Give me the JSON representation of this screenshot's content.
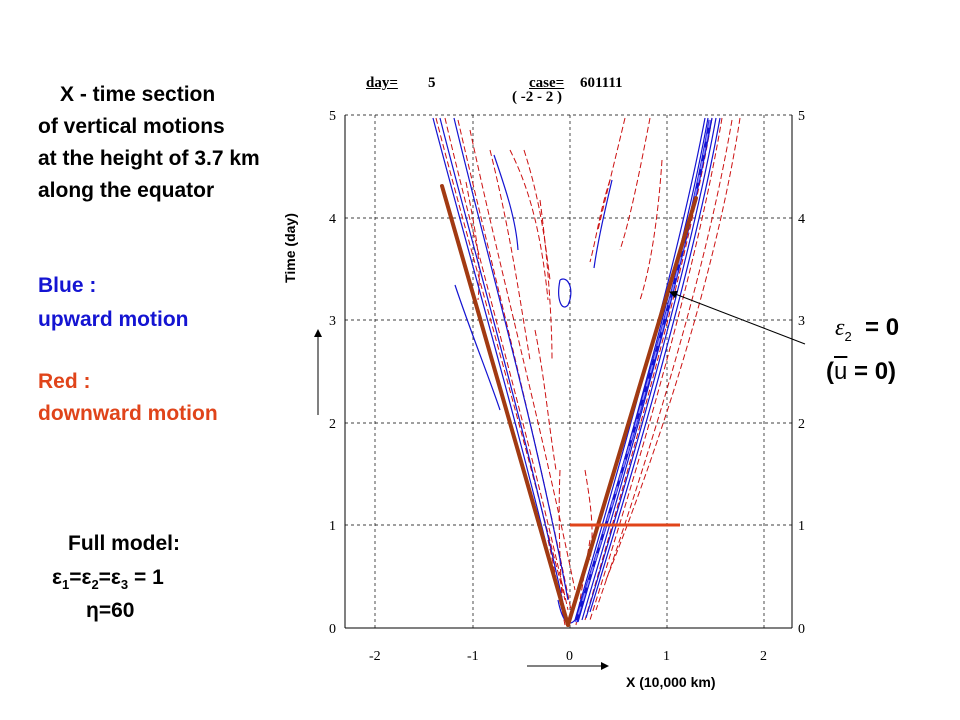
{
  "left_panel": {
    "title_lines": [
      "X - time section",
      "of vertical motions",
      "at the height of 3.7 km",
      "along the equator"
    ],
    "blue_label": "Blue :",
    "blue_desc": "upward motion",
    "red_label": "Red :",
    "red_desc": "downward motion",
    "model_title": "Full model:",
    "model_params": "ε1=ε2=ε3 = 1",
    "model_eta": "η=60"
  },
  "plot": {
    "header_day_label": "day=",
    "header_day_value": "5",
    "header_case_label": "case=",
    "header_case_value": "601111",
    "header_range": "( -2 -  2 )",
    "ylabel": "Time (day)",
    "xlabel": "X (10,000 km)",
    "y_ticks": [
      "0",
      "1",
      "2",
      "3",
      "4",
      "5"
    ],
    "x_ticks": [
      "-2",
      "-1",
      "0",
      "1",
      "2"
    ],
    "xlim": [
      -2.0,
      2.0
    ],
    "ylim": [
      0,
      5
    ]
  },
  "annotation": {
    "line1": "ε2 = 0",
    "line2": "(u = 0)"
  },
  "colors": {
    "upward": "#1414d2",
    "downward": "#e0441a",
    "contour_red": "#cc1111",
    "guide_line": "#a23a12"
  }
}
